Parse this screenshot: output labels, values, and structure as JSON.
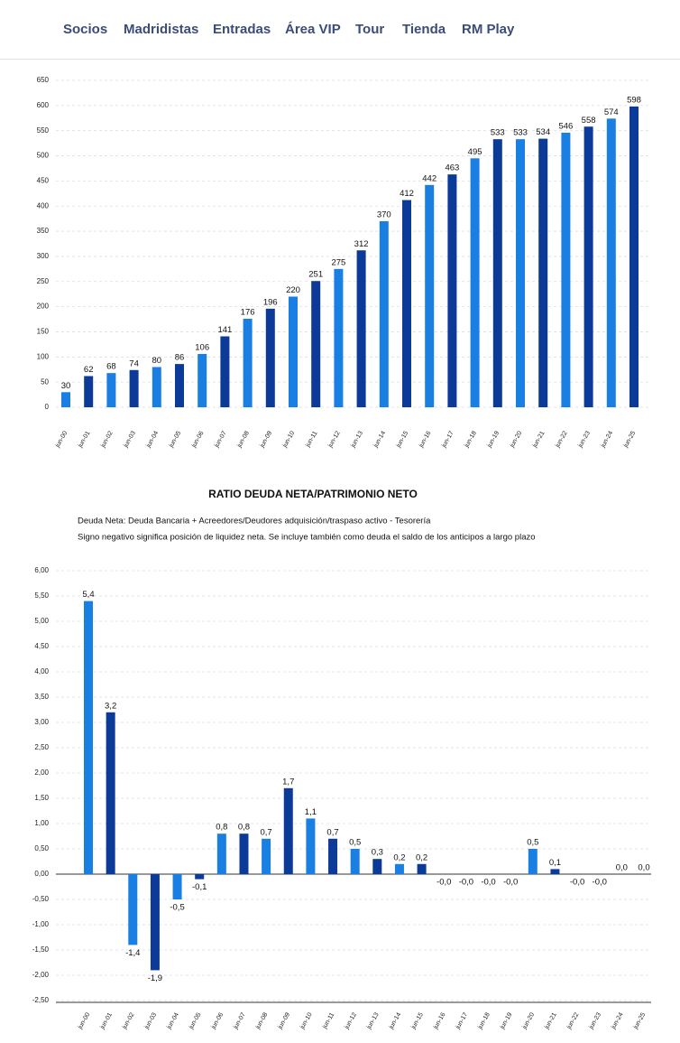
{
  "nav": {
    "items": [
      "Socios",
      "Madridistas",
      "Entradas",
      "Área VIP",
      "Tour",
      "Tienda",
      "RM Play"
    ]
  },
  "chart_data": [
    {
      "type": "bar",
      "categories": [
        "jun-00",
        "jun-01",
        "jun-02",
        "jun-03",
        "jun-04",
        "jun-05",
        "jun-06",
        "jun-07",
        "jun-08",
        "jun-09",
        "jun-10",
        "jun-11",
        "jun-12",
        "jun-13",
        "jun-14",
        "jun-15",
        "jun-16",
        "jun-17",
        "jun-18",
        "jun-19",
        "jun-20",
        "jun-21",
        "jun-22",
        "jun-23",
        "jun-24",
        "jun-25"
      ],
      "values": [
        30,
        62,
        68,
        74,
        80,
        86,
        106,
        141,
        176,
        196,
        220,
        251,
        275,
        312,
        370,
        412,
        442,
        463,
        495,
        533,
        533,
        534,
        546,
        558,
        574,
        598
      ],
      "colors": [
        "#1a7fe2",
        "#0b3a98"
      ],
      "ylim": [
        0,
        650
      ],
      "yticks": [
        0,
        50,
        100,
        150,
        200,
        250,
        300,
        350,
        400,
        450,
        500,
        550,
        600,
        650
      ],
      "grid": true
    },
    {
      "type": "bar",
      "title": "RATIO DEUDA NETA/PATRIMONIO NETO",
      "subtitle": [
        "Deuda Neta: Deuda Bancaria + Acreedores/Deudores adquisición/traspaso activo - Tesorería",
        "Signo negativo significa posición de liquidez neta. Se incluye también como deuda el saldo de los anticipos a largo plazo"
      ],
      "categories": [
        "jun-00",
        "jun-01",
        "jun-02",
        "jun-03",
        "jun-04",
        "jun-05",
        "jun-06",
        "jun-07",
        "jun-08",
        "jun-09",
        "jun-10",
        "jun-11",
        "jun-12",
        "jun-13",
        "jun-14",
        "jun-15",
        "jun-16",
        "jun-17",
        "jun-18",
        "jun-19",
        "jun-20",
        "jun-21",
        "jun-22",
        "jun-23",
        "jun-24",
        "jun-25"
      ],
      "values": [
        5.4,
        3.2,
        -1.4,
        -1.9,
        -0.5,
        -0.1,
        0.8,
        0.8,
        0.7,
        1.7,
        1.1,
        0.7,
        0.5,
        0.3,
        0.2,
        0.2,
        -0.0,
        -0.0,
        -0.0,
        -0.0,
        0.5,
        0.1,
        -0.0,
        -0.0,
        0.0,
        0.0
      ],
      "value_labels": [
        "5,4",
        "3,2",
        "-1,4",
        "-1,9",
        "-0,5",
        "-0,1",
        "0,8",
        "0,8",
        "0,7",
        "1,7",
        "1,1",
        "0,7",
        "0,5",
        "0,3",
        "0,2",
        "0,2",
        "-0,0",
        "-0,0",
        "-0,0",
        "-0,0",
        "0,5",
        "0,1",
        "-0,0",
        "-0,0",
        "0,0",
        "0,0"
      ],
      "colors": [
        "#1a7fe2",
        "#0b3a98"
      ],
      "ylim": [
        -2.5,
        6
      ],
      "yticks": [
        {
          "value": 6,
          "label": "6,00"
        },
        {
          "value": 5.5,
          "label": "5,50"
        },
        {
          "value": 5,
          "label": "5,00"
        },
        {
          "value": 4.5,
          "label": "4,50"
        },
        {
          "value": 4,
          "label": "4,00"
        },
        {
          "value": 3.5,
          "label": "3,50"
        },
        {
          "value": 3,
          "label": "3,00"
        },
        {
          "value": 2.5,
          "label": "2,50"
        },
        {
          "value": 2,
          "label": "2,00"
        },
        {
          "value": 1.5,
          "label": "1,50"
        },
        {
          "value": 1,
          "label": "1,00"
        },
        {
          "value": 0.5,
          "label": "0,50"
        },
        {
          "value": 0,
          "label": "0,00"
        },
        {
          "value": -0.5,
          "label": "-0,50"
        },
        {
          "value": -1,
          "label": "-1,00"
        },
        {
          "value": -1.5,
          "label": "-1,50"
        },
        {
          "value": -2,
          "label": "-2,00"
        },
        {
          "value": -2.5,
          "label": "-2,50"
        }
      ],
      "grid": true
    }
  ]
}
